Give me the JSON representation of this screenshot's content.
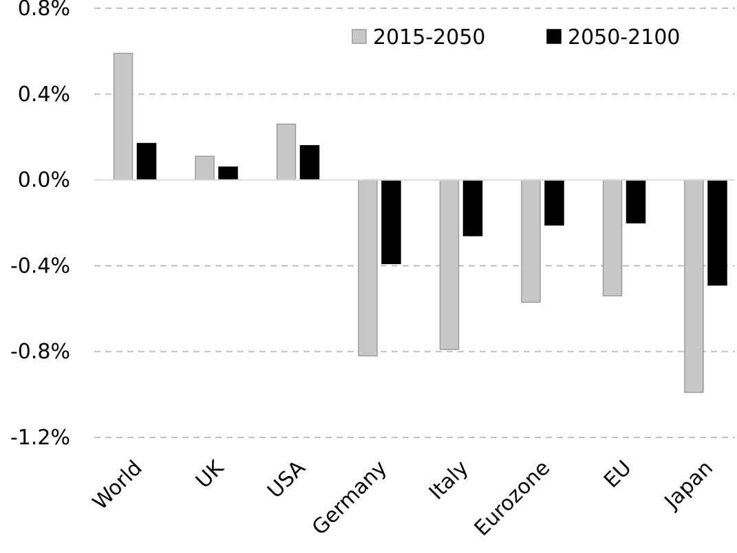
{
  "chart_data": {
    "type": "bar",
    "categories": [
      "World",
      "UK",
      "USA",
      "Germany",
      "Italy",
      "Eurozone",
      "EU",
      "Japan"
    ],
    "series": [
      {
        "name": "2015-2050",
        "values": [
          0.59,
          0.11,
          0.26,
          -0.82,
          -0.79,
          -0.57,
          -0.54,
          -0.99
        ],
        "color": "#c8c8c8"
      },
      {
        "name": "2050-2100",
        "values": [
          0.17,
          0.06,
          0.16,
          -0.39,
          -0.26,
          -0.21,
          -0.2,
          -0.49
        ],
        "color": "#000000"
      }
    ],
    "ylim": [
      -1.2,
      0.8
    ],
    "yticks": [
      0.8,
      0.4,
      0.0,
      -0.4,
      -0.8,
      -1.2
    ],
    "ytick_labels": [
      "0.8%",
      "0.4%",
      "0.0%",
      "-0.4%",
      "-0.8%",
      "-1.2%"
    ],
    "grid": true,
    "legend_position": "top-right",
    "title": "",
    "xlabel": "",
    "ylabel": ""
  }
}
